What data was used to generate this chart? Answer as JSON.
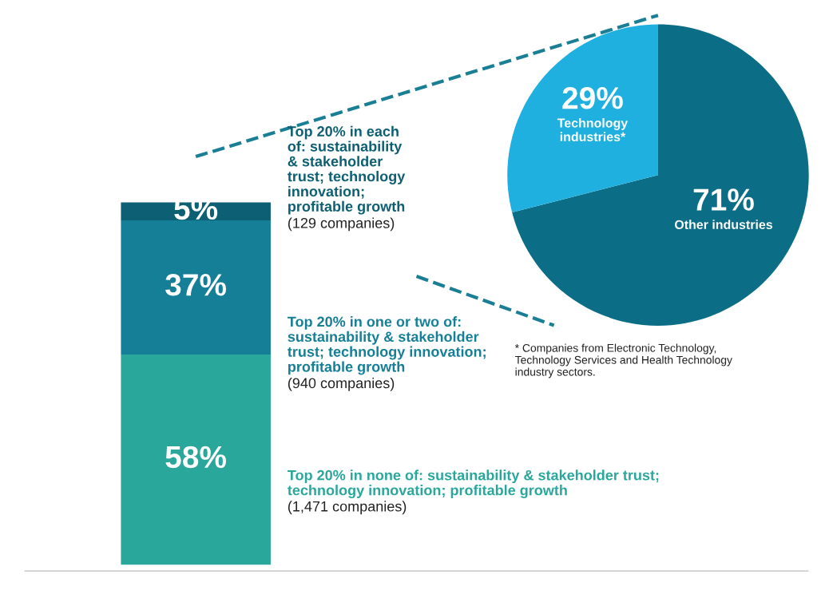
{
  "chart_data": [
    {
      "type": "bar",
      "stacked": true,
      "categories": [
        null
      ],
      "tick_labels": false,
      "series": [
        {
          "name": "Top 20% in none of: sustainability & stakeholder trust; technology innovation; profitable growth",
          "color": "#2aa79b",
          "values": [
            58
          ],
          "value_labels": [
            "58%"
          ]
        },
        {
          "name": "Top 20% in one or two of: sustainability & stakeholder trust; technology innovation; profitable growth",
          "color": "#147f96",
          "values": [
            37
          ],
          "value_labels": [
            "37%"
          ]
        },
        {
          "name": "Top 20% in each of: sustainability & stakeholder trust; technology innovation; profitable growth",
          "color": "#0d5f73",
          "values": [
            5
          ],
          "value_labels": [
            "5%"
          ]
        }
      ],
      "annotations": [
        "(1,471 companies)",
        "(940 companies)",
        "(129 companies)"
      ]
    },
    {
      "type": "pie",
      "categories": [
        "Other industries",
        "Technology industries*"
      ],
      "values": [
        71,
        29
      ],
      "colors": [
        "#0b6e86",
        "#1fb0df"
      ],
      "value_labels": [
        "71%",
        "29%"
      ],
      "annotations": [
        "* Companies from Electronic Technology, Technology Services and Health Technology industry sectors."
      ]
    }
  ]
}
